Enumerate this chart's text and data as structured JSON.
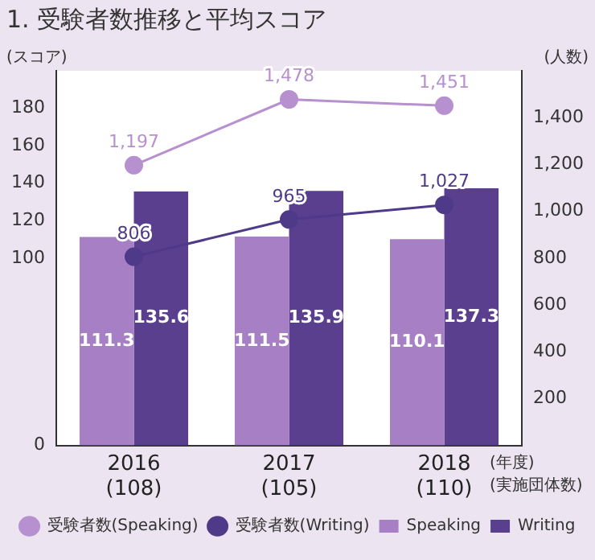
{
  "chart_data": {
    "type": "bar",
    "title": "1. 受験者数推移と平均スコア",
    "ylabel": "(スコア)",
    "y2label": "(人数)",
    "xlabel": "(年度)\n(実施団体数)",
    "categories": [
      "2016\n(108)",
      "2017\n(105)",
      "2018\n(110)"
    ],
    "series": [
      {
        "name": "受験者数(Speaking)",
        "type": "line",
        "axis": "y2",
        "color": "#b690cf",
        "values": [
          1197,
          1478,
          1451
        ],
        "value_labels": [
          "1,197",
          "1,478",
          "1,451"
        ]
      },
      {
        "name": "受験者数(Writing)",
        "type": "line",
        "axis": "y2",
        "color": "#4f3a8a",
        "values": [
          806,
          965,
          1027
        ],
        "value_labels": [
          "806",
          "965",
          "1,027"
        ]
      },
      {
        "name": "Speaking",
        "color": "#a67fc4",
        "values": [
          111.3,
          111.5,
          110.1
        ]
      },
      {
        "name": "Writing",
        "color": "#5b3f8f",
        "values": [
          135.6,
          135.9,
          137.3
        ]
      }
    ],
    "ylim": [
      0,
      200
    ],
    "yticks": [
      0,
      100,
      120,
      140,
      160,
      180
    ],
    "y2lim": [
      0,
      1600
    ],
    "y2ticks": [
      {
        "value": 200,
        "label": "200"
      },
      {
        "value": 400,
        "label": "400"
      },
      {
        "value": 600,
        "label": "600"
      },
      {
        "value": 800,
        "label": "800"
      },
      {
        "value": 1000,
        "label": "1,000"
      },
      {
        "value": 1200,
        "label": "1,200"
      },
      {
        "value": 1400,
        "label": "1,400"
      }
    ],
    "data_labels": true,
    "marker": "circle",
    "legend": "bottom",
    "grid": false
  }
}
